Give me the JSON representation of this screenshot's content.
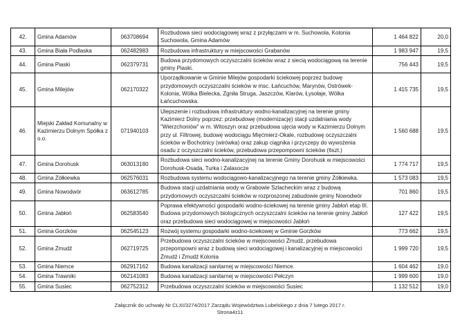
{
  "table": {
    "columns": [
      "no",
      "name",
      "code",
      "description",
      "amount",
      "score"
    ],
    "rows": [
      {
        "no": "42.",
        "name": "Gmina Adamów",
        "code": "063708694",
        "description": "Rozbudowa sieci wodociągowej wraz z przyłączami w m. Suchowola, Kolonia Suchowola, Gmina Adamów",
        "amount": "1 464 822",
        "score": "20,0"
      },
      {
        "no": "43.",
        "name": "Gmina Biała Podlaska",
        "code": "062482983",
        "description": "Rozbudowa infrastruktury w miejscowości Grabanów",
        "amount": "1 983 947",
        "score": "19,5"
      },
      {
        "no": "44.",
        "name": "Gmina Piaski",
        "code": "062379731",
        "description": "Budowa przydomowych oczyszczalni ścieków wraz z siecią wodociągową na terenie gminy Piaski.",
        "amount": "756 443",
        "score": "19,5"
      },
      {
        "no": "45.",
        "name": "Gmina Milejów",
        "code": "062170322",
        "description": "Uporządkowanie w Gminie Milejów gospodarki ściekowej poprzez budowę przydomowych oczyszczalni ścieków w msc. Łańcuchów, Marynów, Ostrówek-Kolonia, Wólka Bielecka, Zgniła Struga, Jaszczów, Klarów, Łysołaje, Wólka Łańcuchowska.",
        "amount": "1 415 735",
        "score": "19,5"
      },
      {
        "no": "46.",
        "name": "Miejski Zakład Komunalny w Kazimierzu Dolnym Spółka z o.o.",
        "code": "071940103",
        "description": "Ulepszenie i rozbudowa infrastruktury wodno-kanalizacyjnej na terenie gminy Kazimierz Dolny poprzez: przebudowę (modernizację) stacji uzdatniania wody \"Wierzchoniów\" w m. Witoszyn oraz przebudowa ujęcia wody w Kazimierzu Dolnym przy ul. Filtrowej, budowę wodociągu Mięćmierz-Okale, rozbudowę oczyszczalni ścieków w Bochotnicy (wirówka) oraz zakup ciągnika i przyczepy do wywożenia osadu z oczyszczalni ścieków, przebudowa przepompowni ścieków (6szt.)",
        "amount": "1 560 688",
        "score": "19,5"
      },
      {
        "no": "47.",
        "name": "Gmina Dorohusk",
        "code": "063013180",
        "description": "Rozbudowa sieci wodno-kanalizacyjnej na terenie Gminy Dorohusk w miejscowości Dorohusk-Osada, Turka i Zalasocze",
        "amount": "1 774 717",
        "score": "19,5"
      },
      {
        "no": "48.",
        "name": "Gmina Żółkiewka",
        "code": "062576031",
        "description": "Rozbudowa systemu wodociągowo-kanalizacyjnego na terenie gminy Żółkiewka.",
        "amount": "1 573 083",
        "score": "19,5"
      },
      {
        "no": "49.",
        "name": "Gmina Nowodwór",
        "code": "063612785",
        "description": "Budowa stacji uzdatniania wody w Grabowie Szlacheckim wraz z budową przydomowych oczyszczalni ścieków w rozproszonej zabudowie gminy Nowodwór",
        "amount": "701 860",
        "score": "19,5"
      },
      {
        "no": "50.",
        "name": "Gmina Jabłoń",
        "code": "062583540",
        "description": "Poprawa efektywności gospodarki wodno-ściekowej na terenie gminy Jabłoń etap III. Budowa przydomowych biologicznych oczyszczalni ścieków na terenie gminy Jabłoń oraz przebudowa sieci wodociągowej w miejscowości Jabłoń",
        "amount": "127 422",
        "score": "19,5"
      },
      {
        "no": "51.",
        "name": "Gmina Gorzków",
        "code": "062545123",
        "description": "Rozwój systemu gospodarki wodno-ściekowej w Gminie Gorzków",
        "amount": "773 662",
        "score": "19,5"
      },
      {
        "no": "52.",
        "name": "Gmina Żmudź",
        "code": "062719725",
        "description": "Przebudowa oczyszczalni ścieków w miejscowości Żmudź, przebudowa przepompowni wraz z budową sieci wodociągowej i kanalizacyjnej w miejscowości Żmudź i Żmudź Kolonia",
        "amount": "1 999 720",
        "score": "19,5"
      },
      {
        "no": "53.",
        "name": "Gmina Niemce",
        "code": "062917162",
        "description": "Budowa kanalizacji sanitarnej w miejscowości Niemce.",
        "amount": "1 604 462",
        "score": "19,0"
      },
      {
        "no": "54.",
        "name": "Gmina Trawniki",
        "code": "062141083",
        "description": "Budowa kanalizacji sanitarnej w miejscowości Pełczyn",
        "amount": "1 999 600",
        "score": "19,0"
      },
      {
        "no": "55.",
        "name": "Gmina Susiec",
        "code": "062752312",
        "description": "Przebudowa oczyszczalni ścieków w miejscowości Susiec",
        "amount": "1 132 512",
        "score": "19,0"
      }
    ]
  },
  "footer": {
    "line1": "Załącznik do uchwały Nr CLXI/3274/2017 Zarządu Województwa Lubelskiego z dnia 7 lutego 2017 r.",
    "line2": "Strona4z11"
  }
}
